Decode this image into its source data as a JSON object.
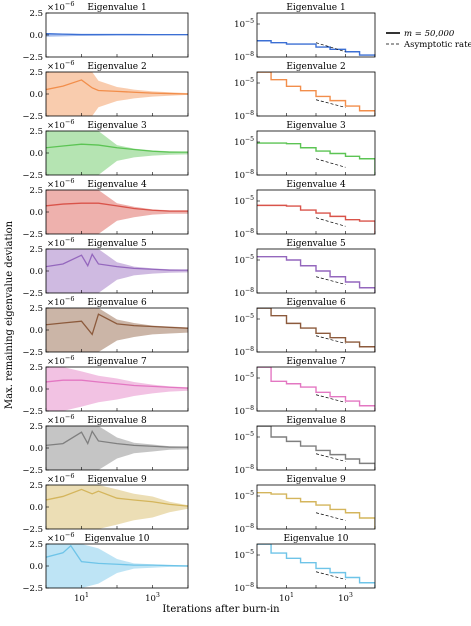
{
  "figure": {
    "ylabel": "Max. remaining eigenvalue deviation",
    "xlabel": "Iterations after burn-in",
    "legend": {
      "position": "top-right",
      "entries": [
        {
          "label": "m = 50,000",
          "style": "solid"
        },
        {
          "label": "Asymptotic rate",
          "style": "dashed"
        }
      ]
    },
    "left_col": {
      "scale_label": "×10^−6",
      "yticks": [
        "2.5",
        "0.0",
        "−2.5"
      ],
      "xticks": [
        "10^1",
        "10^3"
      ]
    },
    "right_col": {
      "yticks": [
        "10^−5",
        "10^−8"
      ],
      "xticks": [
        "10^1",
        "10^3"
      ]
    }
  },
  "chart_data": [
    {
      "type": "area",
      "title": "Eigenvalue 1",
      "color": "#3b6fd4",
      "yscale": 1e-06,
      "ylim": [
        -2.5,
        2.5
      ],
      "x": [
        1,
        3,
        10,
        30,
        100,
        300,
        1000,
        3000,
        10000
      ],
      "y": [
        0.15,
        0.1,
        0.05,
        0.05,
        0.05,
        0.05,
        0.04,
        0.04,
        0.04
      ],
      "band": [
        0.2,
        0.15,
        0.1,
        0.08,
        0.06,
        0.05,
        0.05,
        0.04,
        0.04
      ]
    },
    {
      "type": "line",
      "title": "Eigenvalue 1",
      "color": "#3b6fd4",
      "yscale": "log",
      "ylim": [
        1e-08,
        0.0001
      ],
      "x": [
        1,
        3,
        10,
        30,
        100,
        300,
        1000,
        3000,
        10000
      ],
      "y": [
        3e-07,
        2e-07,
        1.5e-07,
        1.5e-07,
        8e-08,
        5e-08,
        3e-08,
        1.5e-08,
        1e-08
      ],
      "asymptotic": {
        "x": [
          100,
          1000
        ],
        "y": [
          2e-07,
          3e-08
        ]
      }
    },
    {
      "type": "area",
      "title": "Eigenvalue 2",
      "color": "#f28e4b",
      "yscale": 1e-06,
      "ylim": [
        -2.5,
        2.5
      ],
      "x": [
        1,
        3,
        10,
        20,
        30,
        100,
        300,
        1000,
        3000,
        10000
      ],
      "y": [
        0.5,
        0.9,
        1.6,
        0.7,
        0.4,
        0.3,
        0.2,
        0.1,
        0.05,
        0.0
      ],
      "band": [
        2.5,
        2.5,
        2.5,
        2.5,
        1.5,
        0.8,
        0.5,
        0.3,
        0.2,
        0.1
      ]
    },
    {
      "type": "line",
      "title": "Eigenvalue 2",
      "color": "#f28e4b",
      "yscale": "log",
      "ylim": [
        1e-08,
        0.0001
      ],
      "x": [
        1,
        3,
        10,
        30,
        100,
        300,
        1000,
        3000,
        10000
      ],
      "y": [
        0.0001,
        2e-05,
        5e-06,
        2e-06,
        6e-07,
        2.5e-07,
        8e-08,
        3e-08,
        1e-08
      ],
      "asymptotic": {
        "x": [
          100,
          1000
        ],
        "y": [
          3e-07,
          6e-08
        ]
      }
    },
    {
      "type": "area",
      "title": "Eigenvalue 3",
      "color": "#5cc454",
      "yscale": 1e-06,
      "ylim": [
        -2.5,
        2.5
      ],
      "x": [
        1,
        3,
        10,
        30,
        100,
        300,
        1000,
        3000,
        10000
      ],
      "y": [
        0.6,
        0.8,
        1.0,
        0.9,
        0.6,
        0.4,
        0.2,
        0.1,
        0.1
      ],
      "band": [
        2.5,
        2.5,
        2.5,
        2.5,
        0.9,
        0.5,
        0.3,
        0.2,
        0.15
      ]
    },
    {
      "type": "line",
      "title": "Eigenvalue 3",
      "color": "#5cc454",
      "yscale": "log",
      "ylim": [
        1e-08,
        0.0001
      ],
      "x": [
        1,
        3,
        10,
        30,
        100,
        300,
        1000,
        3000,
        10000
      ],
      "y": [
        8e-06,
        8e-06,
        7e-06,
        3e-06,
        1.5e-06,
        9e-07,
        5e-07,
        3e-07,
        1e-08
      ],
      "asymptotic": {
        "x": [
          100,
          1000
        ],
        "y": [
          3e-07,
          5e-08
        ]
      }
    },
    {
      "type": "area",
      "title": "Eigenvalue 4",
      "color": "#d9534a",
      "yscale": 1e-06,
      "ylim": [
        -2.5,
        2.5
      ],
      "x": [
        1,
        3,
        10,
        30,
        100,
        300,
        1000,
        3000,
        10000
      ],
      "y": [
        0.7,
        0.9,
        1.0,
        1.0,
        0.7,
        0.4,
        0.2,
        0.1,
        0.1
      ],
      "band": [
        2.5,
        2.5,
        2.5,
        2.5,
        1.0,
        0.6,
        0.3,
        0.2,
        0.2
      ]
    },
    {
      "type": "line",
      "title": "Eigenvalue 4",
      "color": "#d9534a",
      "yscale": "log",
      "ylim": [
        1e-08,
        0.0001
      ],
      "x": [
        1,
        3,
        10,
        30,
        100,
        300,
        1000,
        3000,
        10000
      ],
      "y": [
        4e-06,
        4e-06,
        3.5e-06,
        1.5e-06,
        8e-07,
        4e-07,
        2e-07,
        1.5e-07,
        1e-08
      ],
      "asymptotic": {
        "x": [
          100,
          1000
        ],
        "y": [
          3e-07,
          5e-08
        ]
      }
    },
    {
      "type": "area",
      "title": "Eigenvalue 5",
      "color": "#9467bd",
      "yscale": 1e-06,
      "ylim": [
        -2.5,
        2.5
      ],
      "x": [
        1,
        3,
        10,
        15,
        20,
        30,
        100,
        300,
        1000,
        3000,
        10000
      ],
      "y": [
        0.5,
        0.8,
        1.8,
        0.6,
        1.9,
        0.8,
        0.5,
        0.3,
        0.2,
        0.1,
        0.1
      ],
      "band": [
        2.5,
        2.5,
        2.5,
        2.5,
        2.5,
        2.5,
        1.0,
        0.5,
        0.3,
        0.2,
        0.15
      ]
    },
    {
      "type": "line",
      "title": "Eigenvalue 5",
      "color": "#9467bd",
      "yscale": "log",
      "ylim": [
        1e-08,
        0.0001
      ],
      "x": [
        1,
        3,
        10,
        30,
        100,
        300,
        1000,
        3000,
        10000
      ],
      "y": [
        2e-05,
        2e-05,
        1e-05,
        3e-06,
        1e-06,
        3e-07,
        1e-07,
        3e-08,
        1e-08
      ],
      "asymptotic": {
        "x": [
          100,
          1000
        ],
        "y": [
          3e-07,
          6e-08
        ]
      }
    },
    {
      "type": "area",
      "title": "Eigenvalue 6",
      "color": "#8c5a3c",
      "yscale": 1e-06,
      "ylim": [
        -2.5,
        2.5
      ],
      "x": [
        1,
        3,
        10,
        20,
        30,
        100,
        300,
        1000,
        3000,
        10000
      ],
      "y": [
        0.6,
        0.8,
        1.0,
        -0.5,
        1.8,
        0.7,
        0.5,
        0.4,
        0.3,
        0.2
      ],
      "band": [
        2.5,
        2.5,
        2.5,
        2.5,
        2.5,
        1.2,
        0.8,
        0.5,
        0.4,
        0.3
      ]
    },
    {
      "type": "line",
      "title": "Eigenvalue 6",
      "color": "#8c5a3c",
      "yscale": "log",
      "ylim": [
        1e-08,
        0.0001
      ],
      "x": [
        1,
        3,
        10,
        30,
        100,
        300,
        1000,
        3000,
        10000
      ],
      "y": [
        0.0001,
        2e-05,
        4e-06,
        1.5e-06,
        5e-07,
        2e-07,
        8e-08,
        3e-08,
        1e-08
      ],
      "asymptotic": {
        "x": [
          100,
          1000
        ],
        "y": [
          3e-07,
          6e-08
        ]
      }
    },
    {
      "type": "area",
      "title": "Eigenvalue 7",
      "color": "#e377c2",
      "yscale": 1e-06,
      "ylim": [
        -2.5,
        2.5
      ],
      "x": [
        1,
        3,
        10,
        30,
        100,
        300,
        1000,
        3000,
        10000
      ],
      "y": [
        0.8,
        1.0,
        1.0,
        0.8,
        0.6,
        0.4,
        0.3,
        0.2,
        0.1
      ],
      "band": [
        2.5,
        2.5,
        2.0,
        1.5,
        1.2,
        0.8,
        0.5,
        0.3,
        0.2
      ]
    },
    {
      "type": "line",
      "title": "Eigenvalue 7",
      "color": "#e377c2",
      "yscale": "log",
      "ylim": [
        1e-08,
        0.0001
      ],
      "x": [
        1,
        3,
        10,
        30,
        100,
        300,
        1000,
        3000,
        10000
      ],
      "y": [
        0.0001,
        5e-06,
        3e-06,
        1.5e-06,
        5e-07,
        2e-07,
        8e-08,
        3e-08,
        1e-08
      ],
      "asymptotic": {
        "x": [
          100,
          1000
        ],
        "y": [
          3e-07,
          6e-08
        ]
      }
    },
    {
      "type": "area",
      "title": "Eigenvalue 8",
      "color": "#7f7f7f",
      "yscale": 1e-06,
      "ylim": [
        -2.5,
        2.5
      ],
      "x": [
        1,
        3,
        10,
        15,
        20,
        30,
        100,
        300,
        1000,
        3000,
        10000
      ],
      "y": [
        0.3,
        0.5,
        1.8,
        0.5,
        1.9,
        0.8,
        0.5,
        0.3,
        0.2,
        0.1,
        0.1
      ],
      "band": [
        2.5,
        2.5,
        2.5,
        2.5,
        2.5,
        2.5,
        1.2,
        0.6,
        0.4,
        0.2,
        0.15
      ]
    },
    {
      "type": "line",
      "title": "Eigenvalue 8",
      "color": "#7f7f7f",
      "yscale": "log",
      "ylim": [
        1e-08,
        0.0001
      ],
      "x": [
        1,
        3,
        10,
        30,
        100,
        300,
        1000,
        3000,
        10000
      ],
      "y": [
        0.0001,
        1e-05,
        4e-06,
        1.5e-06,
        6e-07,
        2.5e-07,
        1e-07,
        4e-08,
        1e-08
      ],
      "asymptotic": {
        "x": [
          100,
          1000
        ],
        "y": [
          3e-07,
          6e-08
        ]
      }
    },
    {
      "type": "area",
      "title": "Eigenvalue 9",
      "color": "#d4b55c",
      "yscale": 1e-06,
      "ylim": [
        -2.5,
        2.5
      ],
      "x": [
        1,
        3,
        10,
        20,
        30,
        100,
        300,
        1000,
        3000,
        10000
      ],
      "y": [
        0.8,
        1.2,
        2.0,
        1.5,
        1.8,
        1.0,
        0.8,
        0.6,
        0.3,
        0.1
      ],
      "band": [
        2.5,
        2.5,
        2.5,
        2.5,
        2.5,
        2.0,
        1.5,
        1.2,
        0.6,
        0.2
      ]
    },
    {
      "type": "line",
      "title": "Eigenvalue 9",
      "color": "#d4b55c",
      "yscale": "log",
      "ylim": [
        1e-08,
        0.0001
      ],
      "x": [
        1,
        3,
        10,
        30,
        100,
        300,
        1000,
        3000,
        10000
      ],
      "y": [
        2e-05,
        1.5e-05,
        6e-06,
        3e-06,
        1.5e-06,
        6e-07,
        3e-07,
        1e-07,
        1e-08
      ],
      "asymptotic": {
        "x": [
          100,
          1000
        ],
        "y": [
          3e-07,
          6e-08
        ]
      }
    },
    {
      "type": "area",
      "title": "Eigenvalue 10",
      "color": "#6ec4e8",
      "yscale": 1e-06,
      "ylim": [
        -2.5,
        2.5
      ],
      "x": [
        1,
        3,
        5,
        10,
        30,
        100,
        300,
        1000,
        3000,
        10000
      ],
      "y": [
        1.0,
        1.5,
        2.3,
        0.5,
        0.3,
        0.2,
        0.1,
        0.1,
        0.05,
        0.0
      ],
      "band": [
        2.5,
        2.5,
        2.5,
        2.5,
        2.0,
        0.8,
        0.3,
        0.2,
        0.1,
        0.1
      ]
    },
    {
      "type": "line",
      "title": "Eigenvalue 10",
      "color": "#6ec4e8",
      "yscale": "log",
      "ylim": [
        1e-08,
        0.0001
      ],
      "x": [
        1,
        3,
        10,
        30,
        100,
        300,
        1000,
        3000,
        10000
      ],
      "y": [
        0.0001,
        1.5e-05,
        5e-06,
        2e-06,
        6e-07,
        2.5e-07,
        9e-08,
        3e-08,
        1e-08
      ],
      "asymptotic": {
        "x": [
          100,
          1000
        ],
        "y": [
          3e-07,
          6e-08
        ]
      }
    }
  ]
}
